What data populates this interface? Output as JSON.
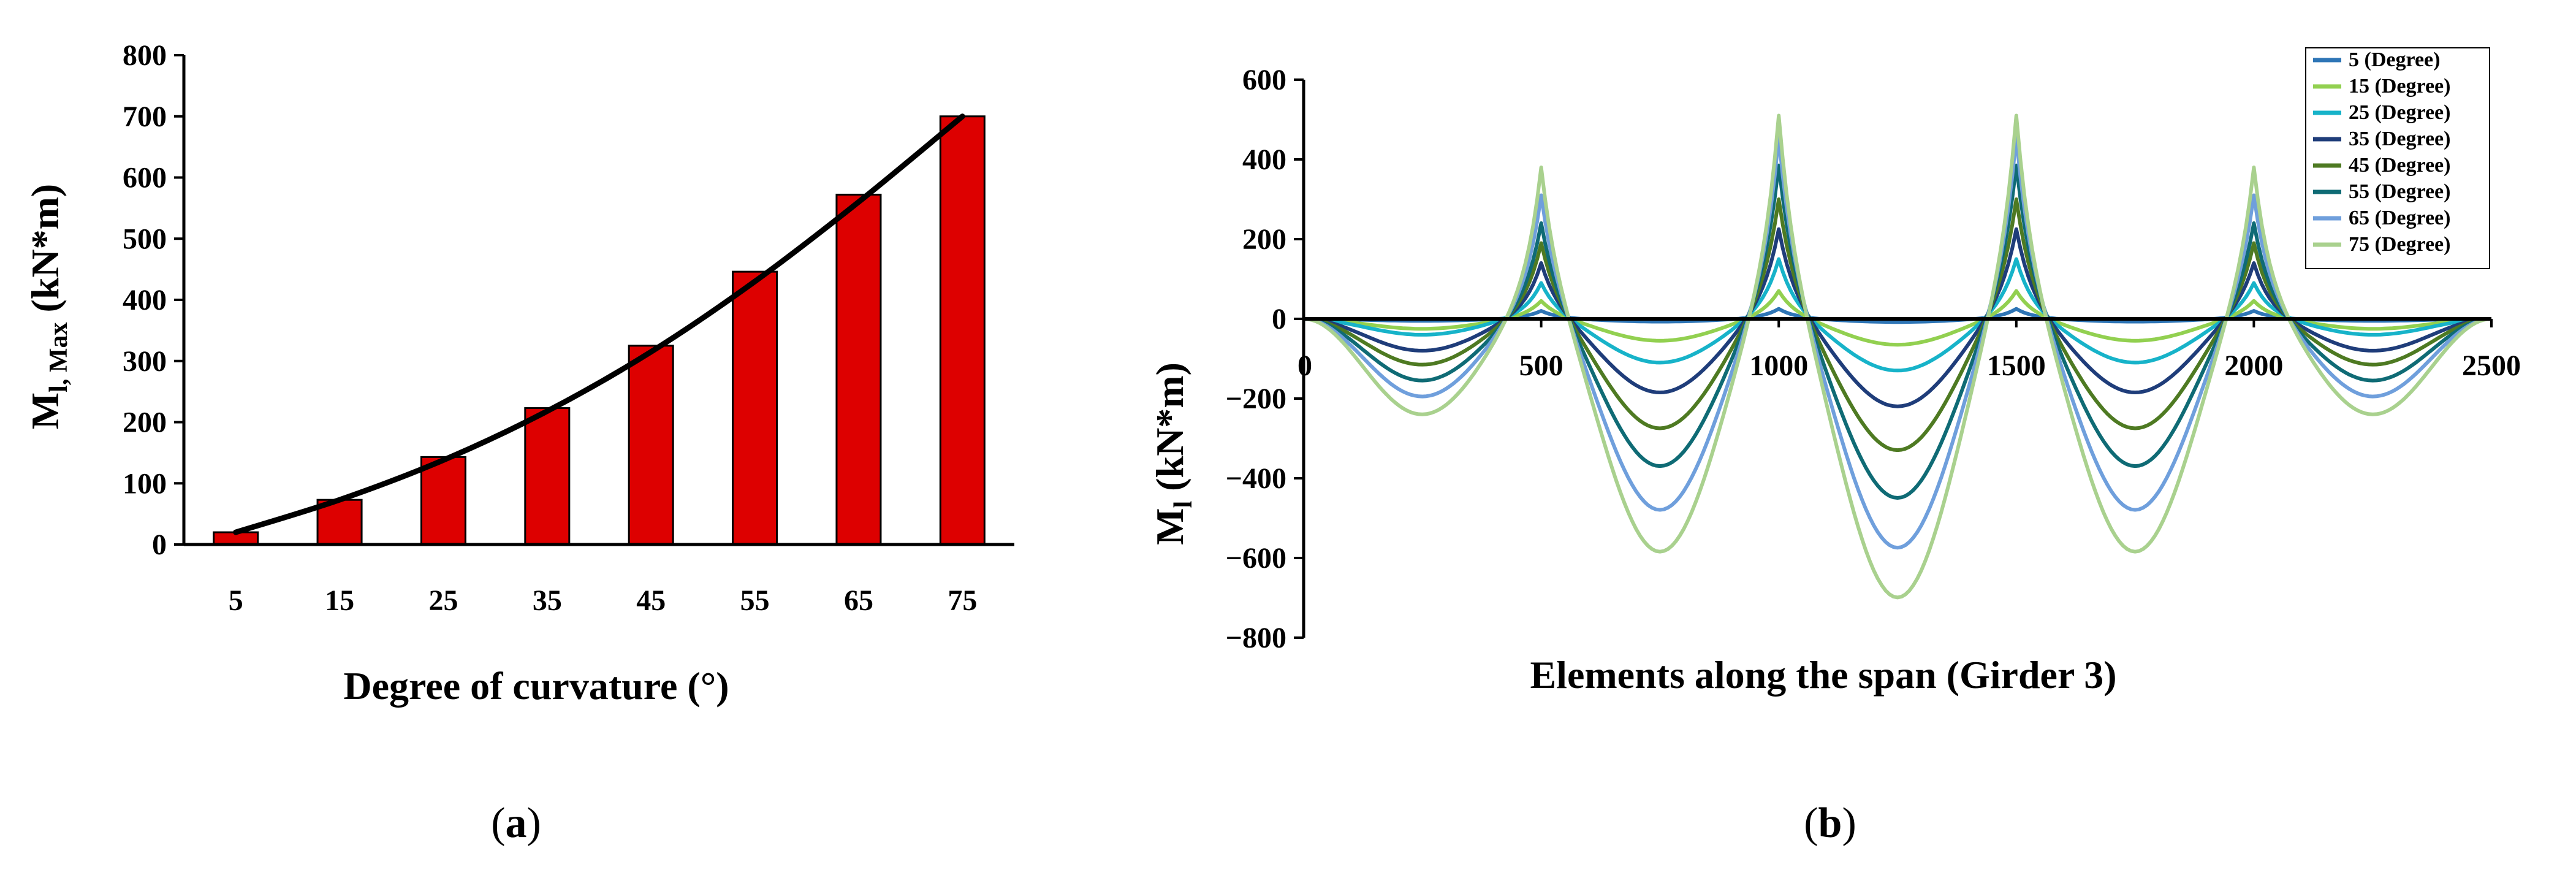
{
  "chart_data": [
    {
      "id": "a",
      "type": "bar",
      "caption_prefix": "(",
      "caption_letter": "a",
      "caption_suffix": ")",
      "xlabel": "Degree of curvature (°)",
      "ylabel_main": "M",
      "ylabel_sub": "l, Max",
      "ylabel_unit": " (kN*m)",
      "categories": [
        "5",
        "15",
        "25",
        "35",
        "45",
        "55",
        "65",
        "75"
      ],
      "values": [
        20,
        73,
        143,
        223,
        325,
        446,
        572,
        700
      ],
      "trend": [
        20,
        73,
        138,
        218,
        315,
        430,
        560,
        700
      ],
      "ylim": [
        0,
        800
      ],
      "yticks": [
        "0",
        "100",
        "200",
        "300",
        "400",
        "500",
        "600",
        "700",
        "800"
      ],
      "bar_color": "#dd0000",
      "trend_color": "#000000"
    },
    {
      "id": "b",
      "type": "line",
      "caption_prefix": "(",
      "caption_letter": "b",
      "caption_suffix": ")",
      "xlabel": "Elements along the span (Girder 3)",
      "ylabel_main": "M",
      "ylabel_sub": "l",
      "ylabel_unit": " (kN*m)",
      "xlim": [
        0,
        2500
      ],
      "xticks": [
        "0",
        "500",
        "1000",
        "1500",
        "2000",
        "2500"
      ],
      "ylim": [
        -800,
        600
      ],
      "yticks": [
        "600",
        "400",
        "200",
        "0",
        "−200",
        "−400",
        "−600",
        "−800"
      ],
      "legend_position": "top-right",
      "span_supports": [
        0,
        500,
        1000,
        1500,
        2000,
        2500
      ],
      "series": [
        {
          "name": "5 (Degree)",
          "color": "#2e75b6",
          "peaks": [
            20,
            25,
            25,
            20
          ],
          "troughs": [
            -5,
            -7,
            -8,
            -7,
            -5
          ]
        },
        {
          "name": "15 (Degree)",
          "color": "#92d050",
          "peaks": [
            45,
            70,
            70,
            45
          ],
          "troughs": [
            -25,
            -55,
            -65,
            -55,
            -25
          ]
        },
        {
          "name": "25 (Degree)",
          "color": "#17b3c9",
          "peaks": [
            90,
            150,
            150,
            90
          ],
          "troughs": [
            -40,
            -110,
            -130,
            -110,
            -40
          ]
        },
        {
          "name": "35 (Degree)",
          "color": "#1f3d7a",
          "peaks": [
            140,
            225,
            225,
            140
          ],
          "troughs": [
            -80,
            -185,
            -220,
            -185,
            -80
          ]
        },
        {
          "name": "45 (Degree)",
          "color": "#4e7a22",
          "peaks": [
            190,
            300,
            300,
            190
          ],
          "troughs": [
            -115,
            -275,
            -330,
            -275,
            -115
          ]
        },
        {
          "name": "55 (Degree)",
          "color": "#0f6b75",
          "peaks": [
            240,
            385,
            385,
            240
          ],
          "troughs": [
            -155,
            -370,
            -450,
            -370,
            -155
          ]
        },
        {
          "name": "65 (Degree)",
          "color": "#6f9fdc",
          "peaks": [
            310,
            455,
            455,
            310
          ],
          "troughs": [
            -195,
            -480,
            -575,
            -480,
            -195
          ]
        },
        {
          "name": "75 (Degree)",
          "color": "#a9d18e",
          "peaks": [
            380,
            510,
            510,
            380
          ],
          "troughs": [
            -240,
            -585,
            -700,
            -585,
            -240
          ]
        }
      ]
    }
  ]
}
